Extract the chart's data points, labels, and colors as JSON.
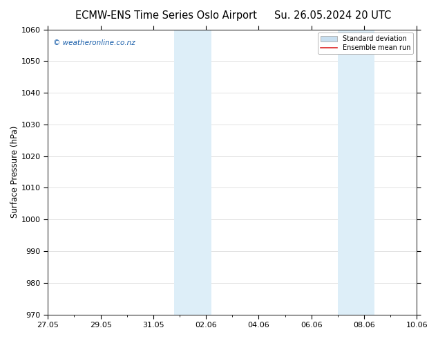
{
  "title_left": "ECMW-ENS Time Series Oslo Airport",
  "title_right": "Su. 26.05.2024 20 UTC",
  "ylabel": "Surface Pressure (hPa)",
  "ylim": [
    970,
    1060
  ],
  "yticks": [
    970,
    980,
    990,
    1000,
    1010,
    1020,
    1030,
    1040,
    1050,
    1060
  ],
  "x_start_days": 0,
  "x_end_days": 14,
  "xtick_labels": [
    "27.05",
    "29.05",
    "31.05",
    "02.06",
    "04.06",
    "06.06",
    "08.06",
    "10.06"
  ],
  "xtick_positions": [
    0,
    2,
    4,
    6,
    8,
    10,
    12,
    14
  ],
  "shaded_bands": [
    {
      "x_start": 4.8,
      "x_end": 6.2
    },
    {
      "x_start": 11.0,
      "x_end": 12.4
    }
  ],
  "band_color": "#ddeef8",
  "watermark_text": "© weatheronline.co.nz",
  "watermark_color": "#1a5faa",
  "legend_std_color": "#c8dff0",
  "legend_mean_color": "#dd2222",
  "background_color": "#ffffff",
  "plot_bg_color": "#ffffff",
  "title_fontsize": 10.5,
  "axis_label_fontsize": 8.5,
  "tick_fontsize": 8
}
